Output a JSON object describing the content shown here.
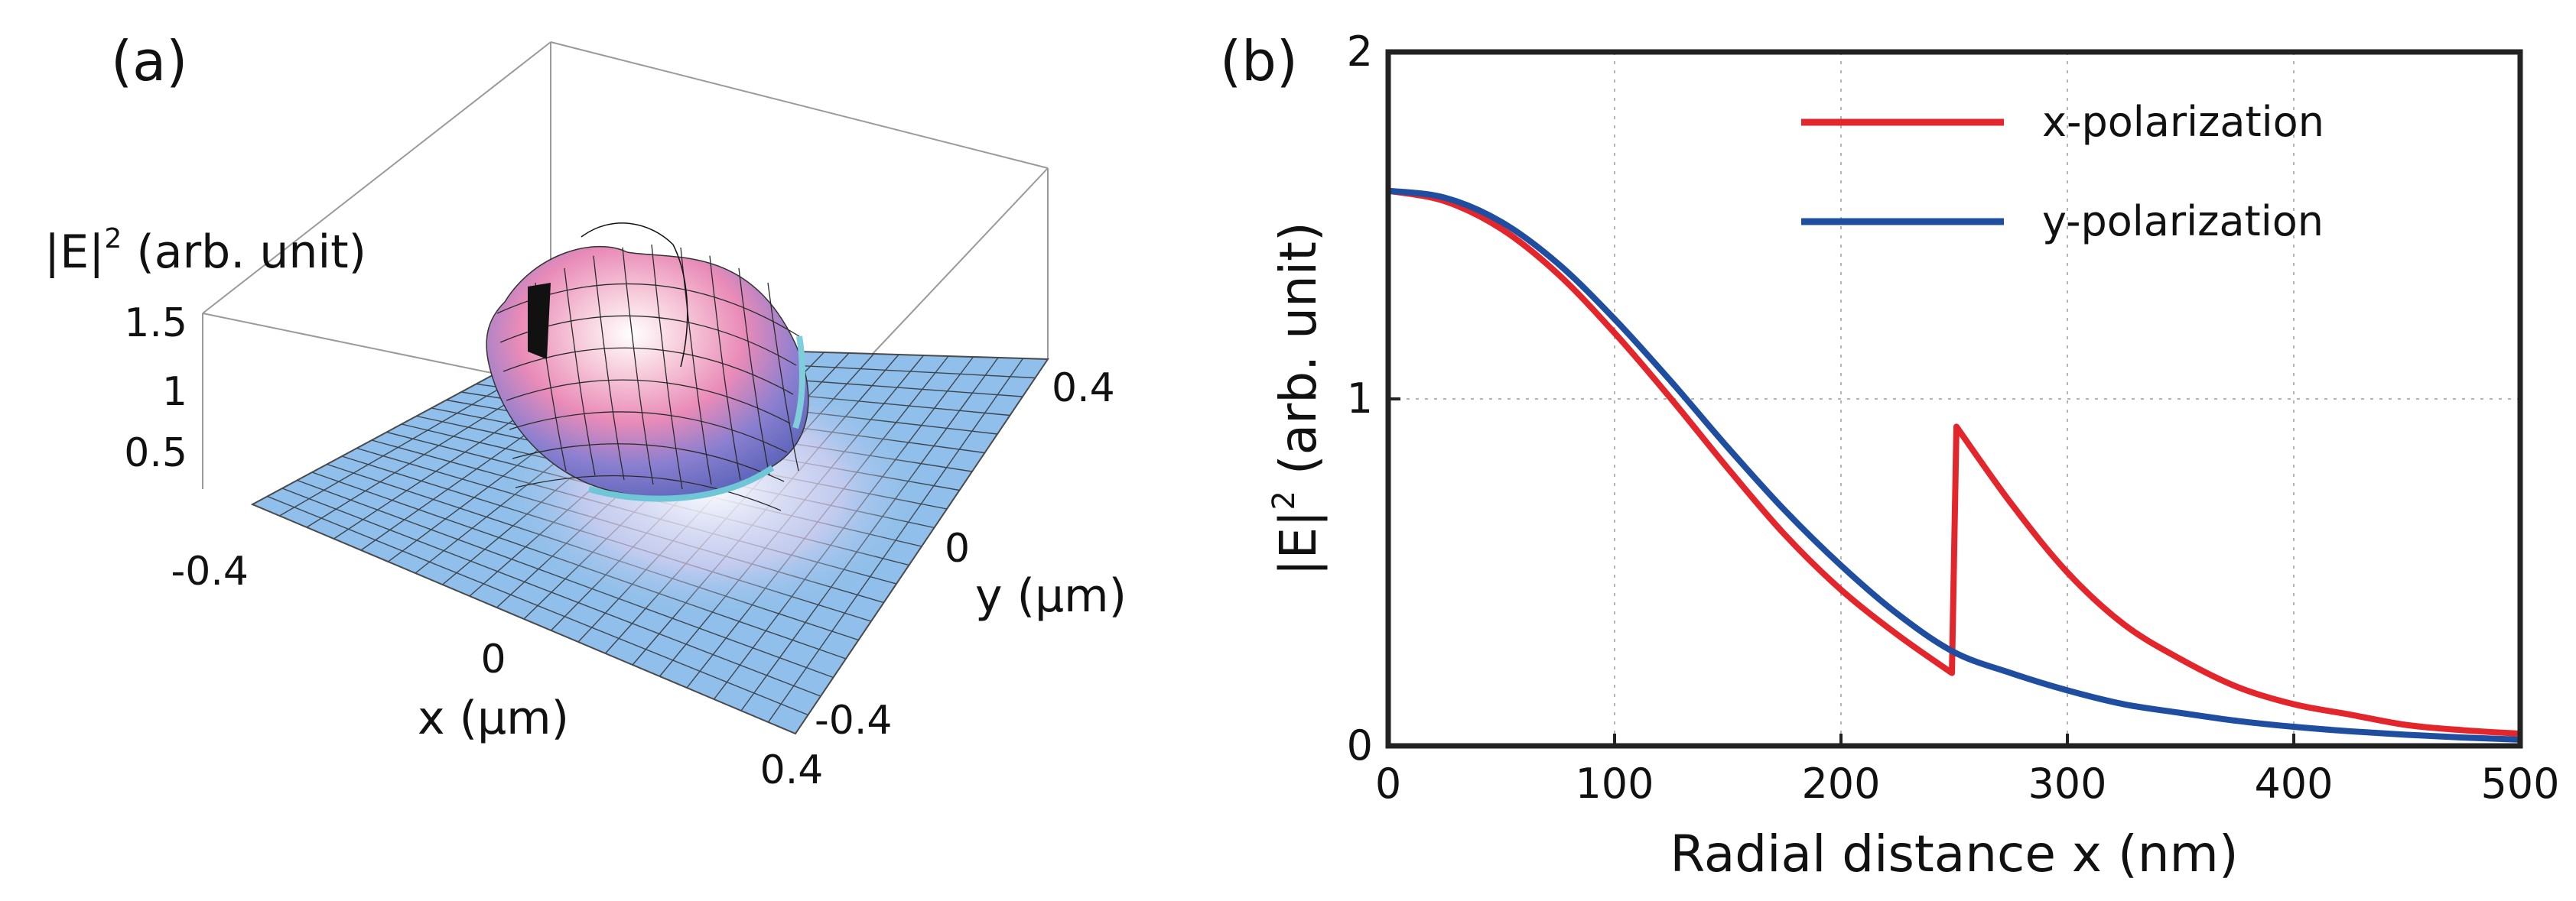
{
  "chart_data": [
    {
      "panel_label": "(a)",
      "type": "surface3d",
      "zlabel_main": "|E|",
      "zlabel_sup": "2",
      "zlabel_rest": " (arb. unit)",
      "xlabel": "x (μm)",
      "ylabel": "y (μm)",
      "z_ticks": [
        "1.5",
        "1",
        "0.5"
      ],
      "x_ticks": [
        "-0.4",
        "0",
        "0.4"
      ],
      "y_ticks": [
        "0.4",
        "0",
        "-0.4"
      ],
      "xlim": [
        -0.4,
        0.4
      ],
      "ylim": [
        -0.4,
        0.4
      ],
      "zlim": [
        0,
        1.6
      ]
    },
    {
      "panel_label": "(b)",
      "type": "line",
      "xlabel": "Radial distance x (nm)",
      "ylabel_main": "|E|",
      "ylabel_sup": "2",
      "ylabel_rest": " (arb. unit)",
      "xlim": [
        0,
        500
      ],
      "ylim": [
        0,
        2
      ],
      "x_ticks": [
        "0",
        "100",
        "200",
        "300",
        "400",
        "500"
      ],
      "y_ticks": [
        "0",
        "1",
        "2"
      ],
      "grid": true,
      "legend": "top-right",
      "series": [
        {
          "name": "x-polarization",
          "color": "#e3262b",
          "x": [
            0,
            25,
            50,
            75,
            100,
            125,
            150,
            175,
            200,
            225,
            249,
            251,
            275,
            300,
            325,
            350,
            375,
            400,
            425,
            450,
            475,
            500
          ],
          "y": [
            1.6,
            1.57,
            1.49,
            1.36,
            1.19,
            1.0,
            0.8,
            0.61,
            0.45,
            0.32,
            0.21,
            0.92,
            0.7,
            0.5,
            0.35,
            0.25,
            0.17,
            0.12,
            0.09,
            0.06,
            0.045,
            0.035
          ]
        },
        {
          "name": "y-polarization",
          "color": "#1f4ea1",
          "x": [
            0,
            25,
            50,
            75,
            100,
            125,
            150,
            175,
            200,
            225,
            250,
            275,
            300,
            325,
            350,
            375,
            400,
            425,
            450,
            475,
            500
          ],
          "y": [
            1.6,
            1.58,
            1.51,
            1.39,
            1.23,
            1.05,
            0.86,
            0.68,
            0.52,
            0.38,
            0.27,
            0.21,
            0.16,
            0.12,
            0.095,
            0.072,
            0.055,
            0.042,
            0.032,
            0.024,
            0.018
          ]
        }
      ]
    }
  ]
}
